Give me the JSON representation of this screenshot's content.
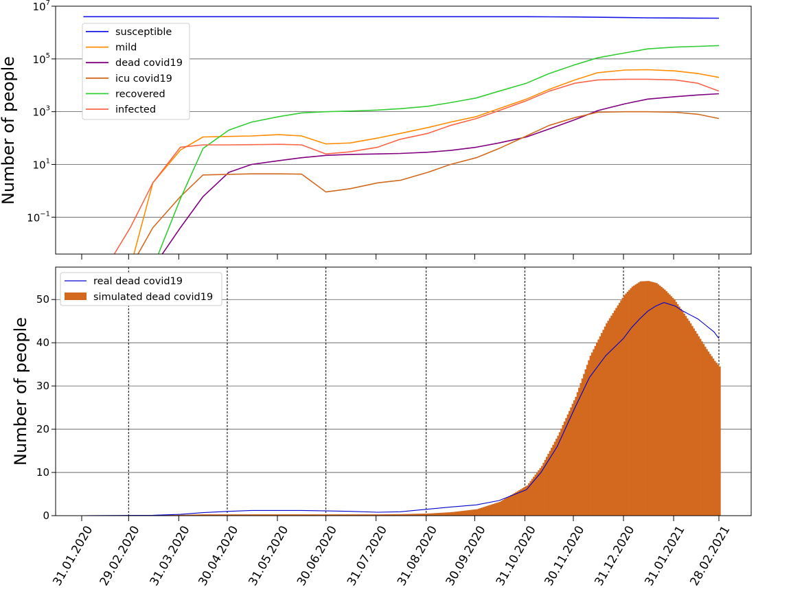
{
  "chart_data": [
    {
      "type": "line",
      "scale_y": "log",
      "ylabel": "Number of people",
      "ylim": [
        0.004,
        10000000
      ],
      "y_ticks": [
        {
          "value": 0.1,
          "base": "10",
          "exp": "−1"
        },
        {
          "value": 10,
          "base": "10",
          "exp": "1"
        },
        {
          "value": 1000,
          "base": "10",
          "exp": "3"
        },
        {
          "value": 100000,
          "base": "10",
          "exp": "5"
        },
        {
          "value": 10000000,
          "base": "10",
          "exp": "7"
        }
      ],
      "grid": "horizontal",
      "legend_position": "upper-left",
      "x_dates": [
        "2020-02-01",
        "2020-02-15",
        "2020-03-01",
        "2020-03-15",
        "2020-04-01",
        "2020-04-15",
        "2020-05-01",
        "2020-05-15",
        "2020-06-01",
        "2020-06-15",
        "2020-06-30",
        "2020-07-15",
        "2020-08-01",
        "2020-08-15",
        "2020-09-01",
        "2020-09-15",
        "2020-10-01",
        "2020-10-15",
        "2020-11-01",
        "2020-11-15",
        "2020-12-01",
        "2020-12-15",
        "2021-01-01",
        "2021-01-15",
        "2021-02-01",
        "2021-02-15",
        "2021-02-28"
      ],
      "series": [
        {
          "name": "susceptible",
          "color": "#1515e6",
          "values": [
            4000000,
            4000000,
            4000000,
            4000000,
            4000000,
            4000000,
            4000000,
            4000000,
            4000000,
            4000000,
            4000000,
            4000000,
            4000000,
            4000000,
            4000000,
            4000000,
            4000000,
            4000000,
            3990000,
            3960000,
            3900000,
            3800000,
            3700000,
            3620000,
            3560000,
            3520000,
            3500000
          ]
        },
        {
          "name": "mild",
          "color": "#ff8c00",
          "values": [
            null,
            null,
            null,
            2,
            35,
            110,
            115,
            120,
            135,
            120,
            60,
            65,
            100,
            150,
            250,
            400,
            650,
            1300,
            3000,
            7000,
            16000,
            30000,
            38000,
            39000,
            35000,
            28000,
            20000
          ]
        },
        {
          "name": "dead covid19",
          "color": "#800080",
          "values": [
            null,
            null,
            null,
            null,
            0.04,
            0.6,
            5,
            10,
            14,
            18,
            22,
            24,
            25,
            26,
            29,
            34,
            45,
            65,
            110,
            220,
            500,
            1100,
            2000,
            3000,
            3700,
            4300,
            4800
          ]
        },
        {
          "name": "icu covid19",
          "color": "#d2691e",
          "values": [
            null,
            null,
            null,
            0.04,
            0.6,
            4,
            4.2,
            4.4,
            4.4,
            4.3,
            0.9,
            1.2,
            2,
            2.5,
            5,
            10,
            18,
            40,
            120,
            300,
            600,
            950,
            1000,
            1000,
            950,
            800,
            550
          ]
        },
        {
          "name": "recovered",
          "color": "#32cd32",
          "values": [
            null,
            null,
            null,
            null,
            0.5,
            40,
            200,
            400,
            650,
            900,
            1000,
            1050,
            1150,
            1300,
            1600,
            2200,
            3300,
            6000,
            12000,
            28000,
            60000,
            110000,
            170000,
            240000,
            280000,
            300000,
            320000
          ]
        },
        {
          "name": "infected",
          "color": "#fa6446",
          "values": [
            null,
            null,
            0.04,
            2,
            45,
            55,
            55,
            56,
            58,
            55,
            25,
            30,
            45,
            90,
            150,
            300,
            550,
            1100,
            2600,
            6000,
            12000,
            16000,
            17000,
            17000,
            16000,
            12000,
            6000
          ]
        }
      ]
    },
    {
      "type": "bar",
      "ylabel": "Number of people",
      "ylim": [
        0,
        57.5
      ],
      "y_ticks": [
        0,
        10,
        20,
        30,
        40,
        50
      ],
      "grid": "horizontal",
      "legend_position": "upper-left",
      "x_ticks": [
        "31.01.2020",
        "29.02.2020",
        "31.03.2020",
        "30.04.2020",
        "31.05.2020",
        "30.06.2020",
        "31.07.2020",
        "31.08.2020",
        "30.09.2020",
        "31.10.2020",
        "30.11.2020",
        "31.12.2020",
        "31.01.2021",
        "28.02.2021"
      ],
      "x_tick_dates": [
        "2020-01-31",
        "2020-02-29",
        "2020-03-31",
        "2020-04-30",
        "2020-05-31",
        "2020-06-30",
        "2020-07-31",
        "2020-08-31",
        "2020-09-30",
        "2020-10-31",
        "2020-11-30",
        "2020-12-31",
        "2021-01-31",
        "2021-02-28"
      ],
      "vlines": [
        "2020-02-29",
        "2020-04-30",
        "2020-06-30",
        "2020-08-31",
        "2020-10-31",
        "2020-12-31",
        "2021-02-28"
      ],
      "bar_series": {
        "name": "simulated dead covid19",
        "color": "#d2691e",
        "x": [
          "2020-02-01",
          "2020-03-15",
          "2020-04-01",
          "2020-04-15",
          "2020-05-01",
          "2020-05-31",
          "2020-06-15",
          "2020-07-01",
          "2020-08-01",
          "2020-08-15",
          "2020-09-01",
          "2020-09-15",
          "2020-10-01",
          "2020-10-15",
          "2020-11-01",
          "2020-11-10",
          "2020-11-20",
          "2020-12-01",
          "2020-12-10",
          "2020-12-20",
          "2020-12-31",
          "2021-01-05",
          "2021-01-10",
          "2021-01-15",
          "2021-01-20",
          "2021-01-25",
          "2021-01-31",
          "2021-02-05",
          "2021-02-10",
          "2021-02-15",
          "2021-02-20",
          "2021-02-25",
          "2021-02-28"
        ],
        "values": [
          0,
          0.1,
          0.2,
          0.3,
          0.3,
          0.3,
          0.3,
          0.3,
          0.3,
          0.35,
          0.5,
          0.8,
          1.5,
          3.2,
          7,
          11.5,
          18.5,
          27.5,
          37,
          44.5,
          51,
          53,
          54.2,
          54.3,
          53.8,
          52.3,
          50,
          47.3,
          44.5,
          41.5,
          38.5,
          35.8,
          34.5
        ]
      },
      "line_series": {
        "name": "real dead covid19",
        "color": "#0000cd",
        "x": [
          "2020-02-01",
          "2020-03-15",
          "2020-04-01",
          "2020-04-15",
          "2020-05-01",
          "2020-05-15",
          "2020-06-01",
          "2020-06-15",
          "2020-07-01",
          "2020-07-15",
          "2020-08-01",
          "2020-08-15",
          "2020-09-01",
          "2020-09-15",
          "2020-10-01",
          "2020-10-15",
          "2020-11-01",
          "2020-11-10",
          "2020-11-20",
          "2020-12-01",
          "2020-12-10",
          "2020-12-20",
          "2020-12-31",
          "2021-01-05",
          "2021-01-10",
          "2021-01-15",
          "2021-01-20",
          "2021-01-25",
          "2021-02-01",
          "2021-02-05",
          "2021-02-10",
          "2021-02-15",
          "2021-02-20",
          "2021-02-25",
          "2021-02-28"
        ],
        "values": [
          0,
          0.1,
          0.3,
          0.7,
          1.0,
          1.2,
          1.2,
          1.2,
          1.1,
          1.0,
          0.8,
          0.9,
          1.5,
          2.0,
          2.5,
          3.5,
          6.0,
          10,
          16,
          25,
          32,
          37,
          41,
          43.5,
          45.5,
          47.3,
          48.5,
          49.3,
          48.5,
          47.5,
          46.5,
          45.5,
          44.0,
          42.5,
          41.0
        ]
      }
    }
  ]
}
